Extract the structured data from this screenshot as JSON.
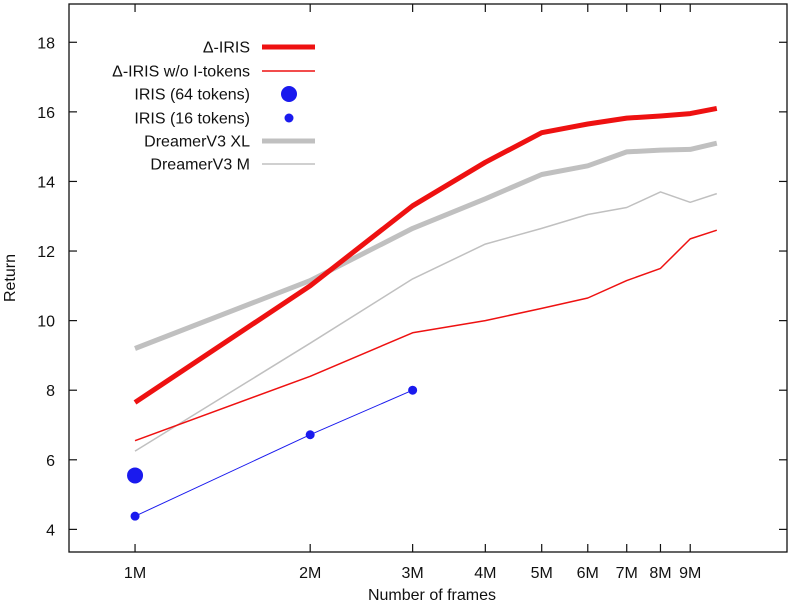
{
  "chart_data": {
    "type": "line",
    "title": "",
    "xlabel": "Number of frames",
    "ylabel": "Return",
    "x_scale": "log",
    "x_ticks": [
      {
        "value": 1,
        "label": "1M"
      },
      {
        "value": 2,
        "label": "2M"
      },
      {
        "value": 3,
        "label": "3M"
      },
      {
        "value": 4,
        "label": "4M"
      },
      {
        "value": 5,
        "label": "5M"
      },
      {
        "value": 6,
        "label": "6M"
      },
      {
        "value": 7,
        "label": "7M"
      },
      {
        "value": 8,
        "label": "8M"
      },
      {
        "value": 9,
        "label": "9M"
      }
    ],
    "y_ticks": [
      {
        "value": 4,
        "label": "4"
      },
      {
        "value": 6,
        "label": "6"
      },
      {
        "value": 8,
        "label": "8"
      },
      {
        "value": 10,
        "label": "10"
      },
      {
        "value": 12,
        "label": "12"
      },
      {
        "value": 14,
        "label": "14"
      },
      {
        "value": 16,
        "label": "16"
      },
      {
        "value": 18,
        "label": "18"
      }
    ],
    "xlim": [
      0.77,
      13.2
    ],
    "ylim": [
      3.35,
      19.1
    ],
    "grid": false,
    "legend_position": "top-right",
    "series": [
      {
        "name": "Δ-IRIS",
        "style": "line",
        "color": "#ee1111",
        "weight": "thick",
        "x": [
          1,
          2,
          3,
          4,
          5,
          6,
          7,
          8,
          9,
          10
        ],
        "y": [
          7.65,
          11.0,
          13.3,
          14.55,
          15.4,
          15.65,
          15.82,
          15.88,
          15.95,
          16.1
        ]
      },
      {
        "name": "Δ-IRIS w/o I-tokens",
        "style": "line",
        "color": "#ee1111",
        "weight": "thin",
        "x": [
          1,
          2,
          3,
          4,
          5,
          6,
          7,
          8,
          9,
          10
        ],
        "y": [
          6.55,
          8.4,
          9.65,
          10.0,
          10.35,
          10.65,
          11.15,
          11.5,
          12.35,
          12.6
        ]
      },
      {
        "name": "IRIS (64 tokens)",
        "style": "marker",
        "color": "#1a1aee",
        "weight": "large",
        "x": [
          1
        ],
        "y": [
          5.55
        ]
      },
      {
        "name": "IRIS (16 tokens)",
        "style": "line-marker",
        "color": "#1a1aee",
        "weight": "small",
        "x": [
          1,
          2,
          3
        ],
        "y": [
          4.38,
          6.72,
          8.0
        ]
      },
      {
        "name": "DreamerV3 XL",
        "style": "line",
        "color": "#c0c0c0",
        "weight": "thick",
        "x": [
          1,
          2,
          3,
          4,
          5,
          6,
          7,
          8,
          9,
          10
        ],
        "y": [
          9.2,
          11.15,
          12.65,
          13.5,
          14.2,
          14.45,
          14.85,
          14.9,
          14.92,
          15.1
        ]
      },
      {
        "name": "DreamerV3 M",
        "style": "line",
        "color": "#c0c0c0",
        "weight": "thin",
        "x": [
          1,
          2,
          3,
          4,
          5,
          6,
          7,
          8,
          9,
          10
        ],
        "y": [
          6.25,
          9.35,
          11.2,
          12.2,
          12.65,
          13.05,
          13.25,
          13.7,
          13.4,
          13.65
        ]
      }
    ]
  }
}
